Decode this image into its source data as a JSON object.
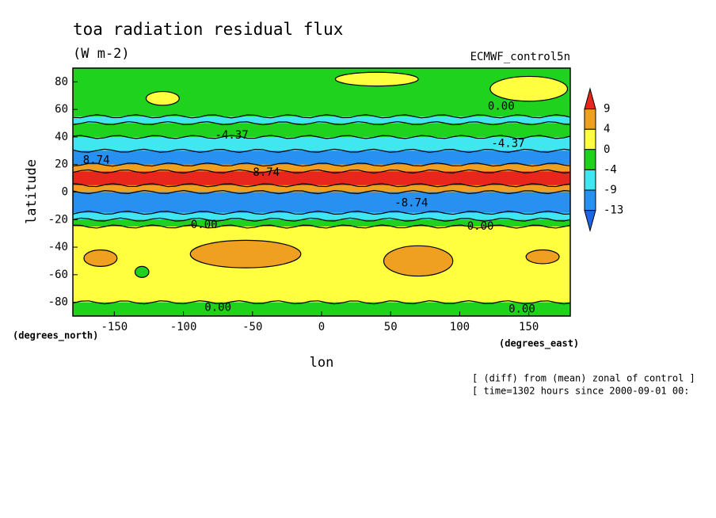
{
  "chart_data": {
    "type": "contour",
    "title": "toa radiation residual flux",
    "subtitle": "(W m-2)",
    "dataset": "ECMWF_control5n",
    "x_label": "lon",
    "y_label": "latitude",
    "x_units": "(degrees_east)",
    "y_units": "(degrees_north)",
    "footnotes": [
      "[ (diff) from (mean) zonal of control ]",
      "[ time=1302 hours since 2000-09-01 00:"
    ],
    "xlim": [
      -180,
      180
    ],
    "ylim": [
      -90,
      90
    ],
    "xticks": [
      -150,
      -100,
      -50,
      0,
      50,
      100,
      150
    ],
    "yticks": [
      -80,
      -60,
      -40,
      -20,
      0,
      20,
      40,
      60,
      80
    ],
    "levels": [
      9,
      4,
      0,
      -4,
      -9,
      -13
    ],
    "colors": [
      "#e8261c",
      "#f0a020",
      "#ffff40",
      "#1ed21e",
      "#40e6f0",
      "#2890f0",
      "#1e64e6"
    ],
    "lat": [
      87.5,
      82.5,
      77.5,
      72.5,
      67.5,
      62.5,
      57.5,
      52.5,
      47.5,
      42.5,
      37.5,
      32.5,
      27.5,
      22.5,
      17.5,
      12.5,
      7.5,
      2.5,
      -2.5,
      -7.5,
      -12.5,
      -17.5,
      -22.5,
      -27.5,
      -32.5,
      -37.5,
      -42.5,
      -47.5,
      -52.5,
      -57.5,
      -62.5,
      -67.5,
      -72.5,
      -77.5,
      -82.5,
      -87.5
    ],
    "values": [
      -2,
      -2,
      -1,
      -1,
      -2,
      -3,
      -3,
      -6,
      -3,
      -3,
      -6,
      -7,
      -10,
      -10,
      6,
      10,
      10,
      6,
      -10,
      -11,
      -11,
      -7,
      -2,
      2,
      2,
      2,
      2,
      2,
      2,
      2,
      2,
      2,
      2,
      2,
      -2,
      -2
    ],
    "patches": [
      {
        "lon": 150,
        "lat": 75,
        "rx": 28,
        "ry": 9,
        "value": 2
      },
      {
        "lon": -115,
        "lat": 68,
        "rx": 12,
        "ry": 5,
        "value": 2
      },
      {
        "lon": 40,
        "lat": 82,
        "rx": 30,
        "ry": 5,
        "value": 2
      },
      {
        "lon": -55,
        "lat": -45,
        "rx": 40,
        "ry": 10,
        "value": 6
      },
      {
        "lon": 70,
        "lat": -50,
        "rx": 25,
        "ry": 11,
        "value": 6
      },
      {
        "lon": -160,
        "lat": -48,
        "rx": 12,
        "ry": 6,
        "value": 6
      },
      {
        "lon": 160,
        "lat": -47,
        "rx": 12,
        "ry": 5,
        "value": 6
      },
      {
        "lon": -130,
        "lat": -58,
        "rx": 5,
        "ry": 4,
        "value": -2
      }
    ],
    "annotations": [
      {
        "text": "0.00",
        "lon": 130,
        "lat": 62
      },
      {
        "text": "-4.37",
        "lon": -65,
        "lat": 41
      },
      {
        "text": "-4.37",
        "lon": 135,
        "lat": 35
      },
      {
        "text": "8.74",
        "lon": -163,
        "lat": 23
      },
      {
        "text": "8.74",
        "lon": -40,
        "lat": 14
      },
      {
        "text": "-8.74",
        "lon": 65,
        "lat": -8
      },
      {
        "text": "0.00",
        "lon": -85,
        "lat": -24
      },
      {
        "text": "0.00",
        "lon": 115,
        "lat": -25
      },
      {
        "text": "0.00",
        "lon": -75,
        "lat": -84
      },
      {
        "text": "0.00",
        "lon": 145,
        "lat": -85
      }
    ]
  }
}
